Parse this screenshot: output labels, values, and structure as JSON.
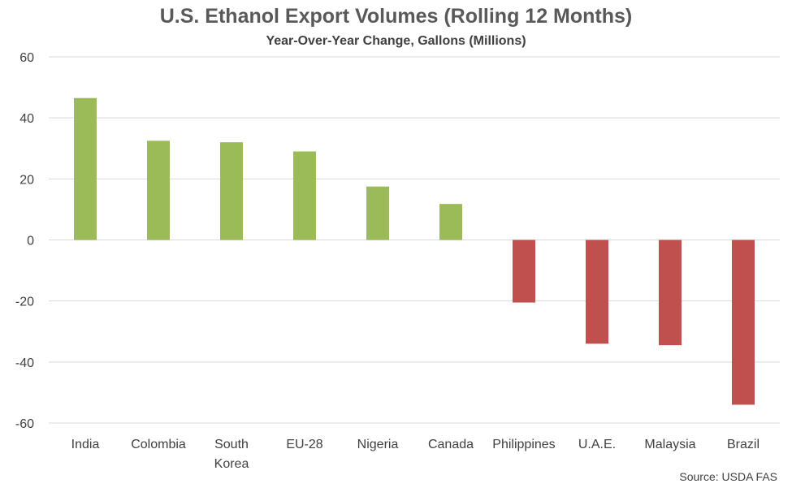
{
  "chart_data": {
    "type": "bar",
    "title": "U.S. Ethanol Export Volumes (Rolling 12 Months)",
    "subtitle": "Year-Over-Year Change, Gallons (Millions)",
    "categories": [
      "India",
      "Colombia",
      "South Korea",
      "EU-28",
      "Nigeria",
      "Canada",
      "Philippines",
      "U.A.E.",
      "Malaysia",
      "Brazil"
    ],
    "category_lines": [
      [
        "India"
      ],
      [
        "Colombia"
      ],
      [
        "South",
        "Korea"
      ],
      [
        "EU-28"
      ],
      [
        "Nigeria"
      ],
      [
        "Canada"
      ],
      [
        "Philippines"
      ],
      [
        "U.A.E."
      ],
      [
        "Malaysia"
      ],
      [
        "Brazil"
      ]
    ],
    "values": [
      46.5,
      32.5,
      32.0,
      29.0,
      17.5,
      11.8,
      -20.5,
      -34.0,
      -34.5,
      -54.0
    ],
    "ylim": [
      -60,
      60
    ],
    "yticks": [
      60,
      40,
      20,
      0,
      -20,
      -40,
      -60
    ],
    "grid": true,
    "colors": {
      "positive": "#9BBB59",
      "negative": "#C0504D",
      "grid": "#D9D9D9"
    },
    "source": "Source: USDA FAS"
  }
}
